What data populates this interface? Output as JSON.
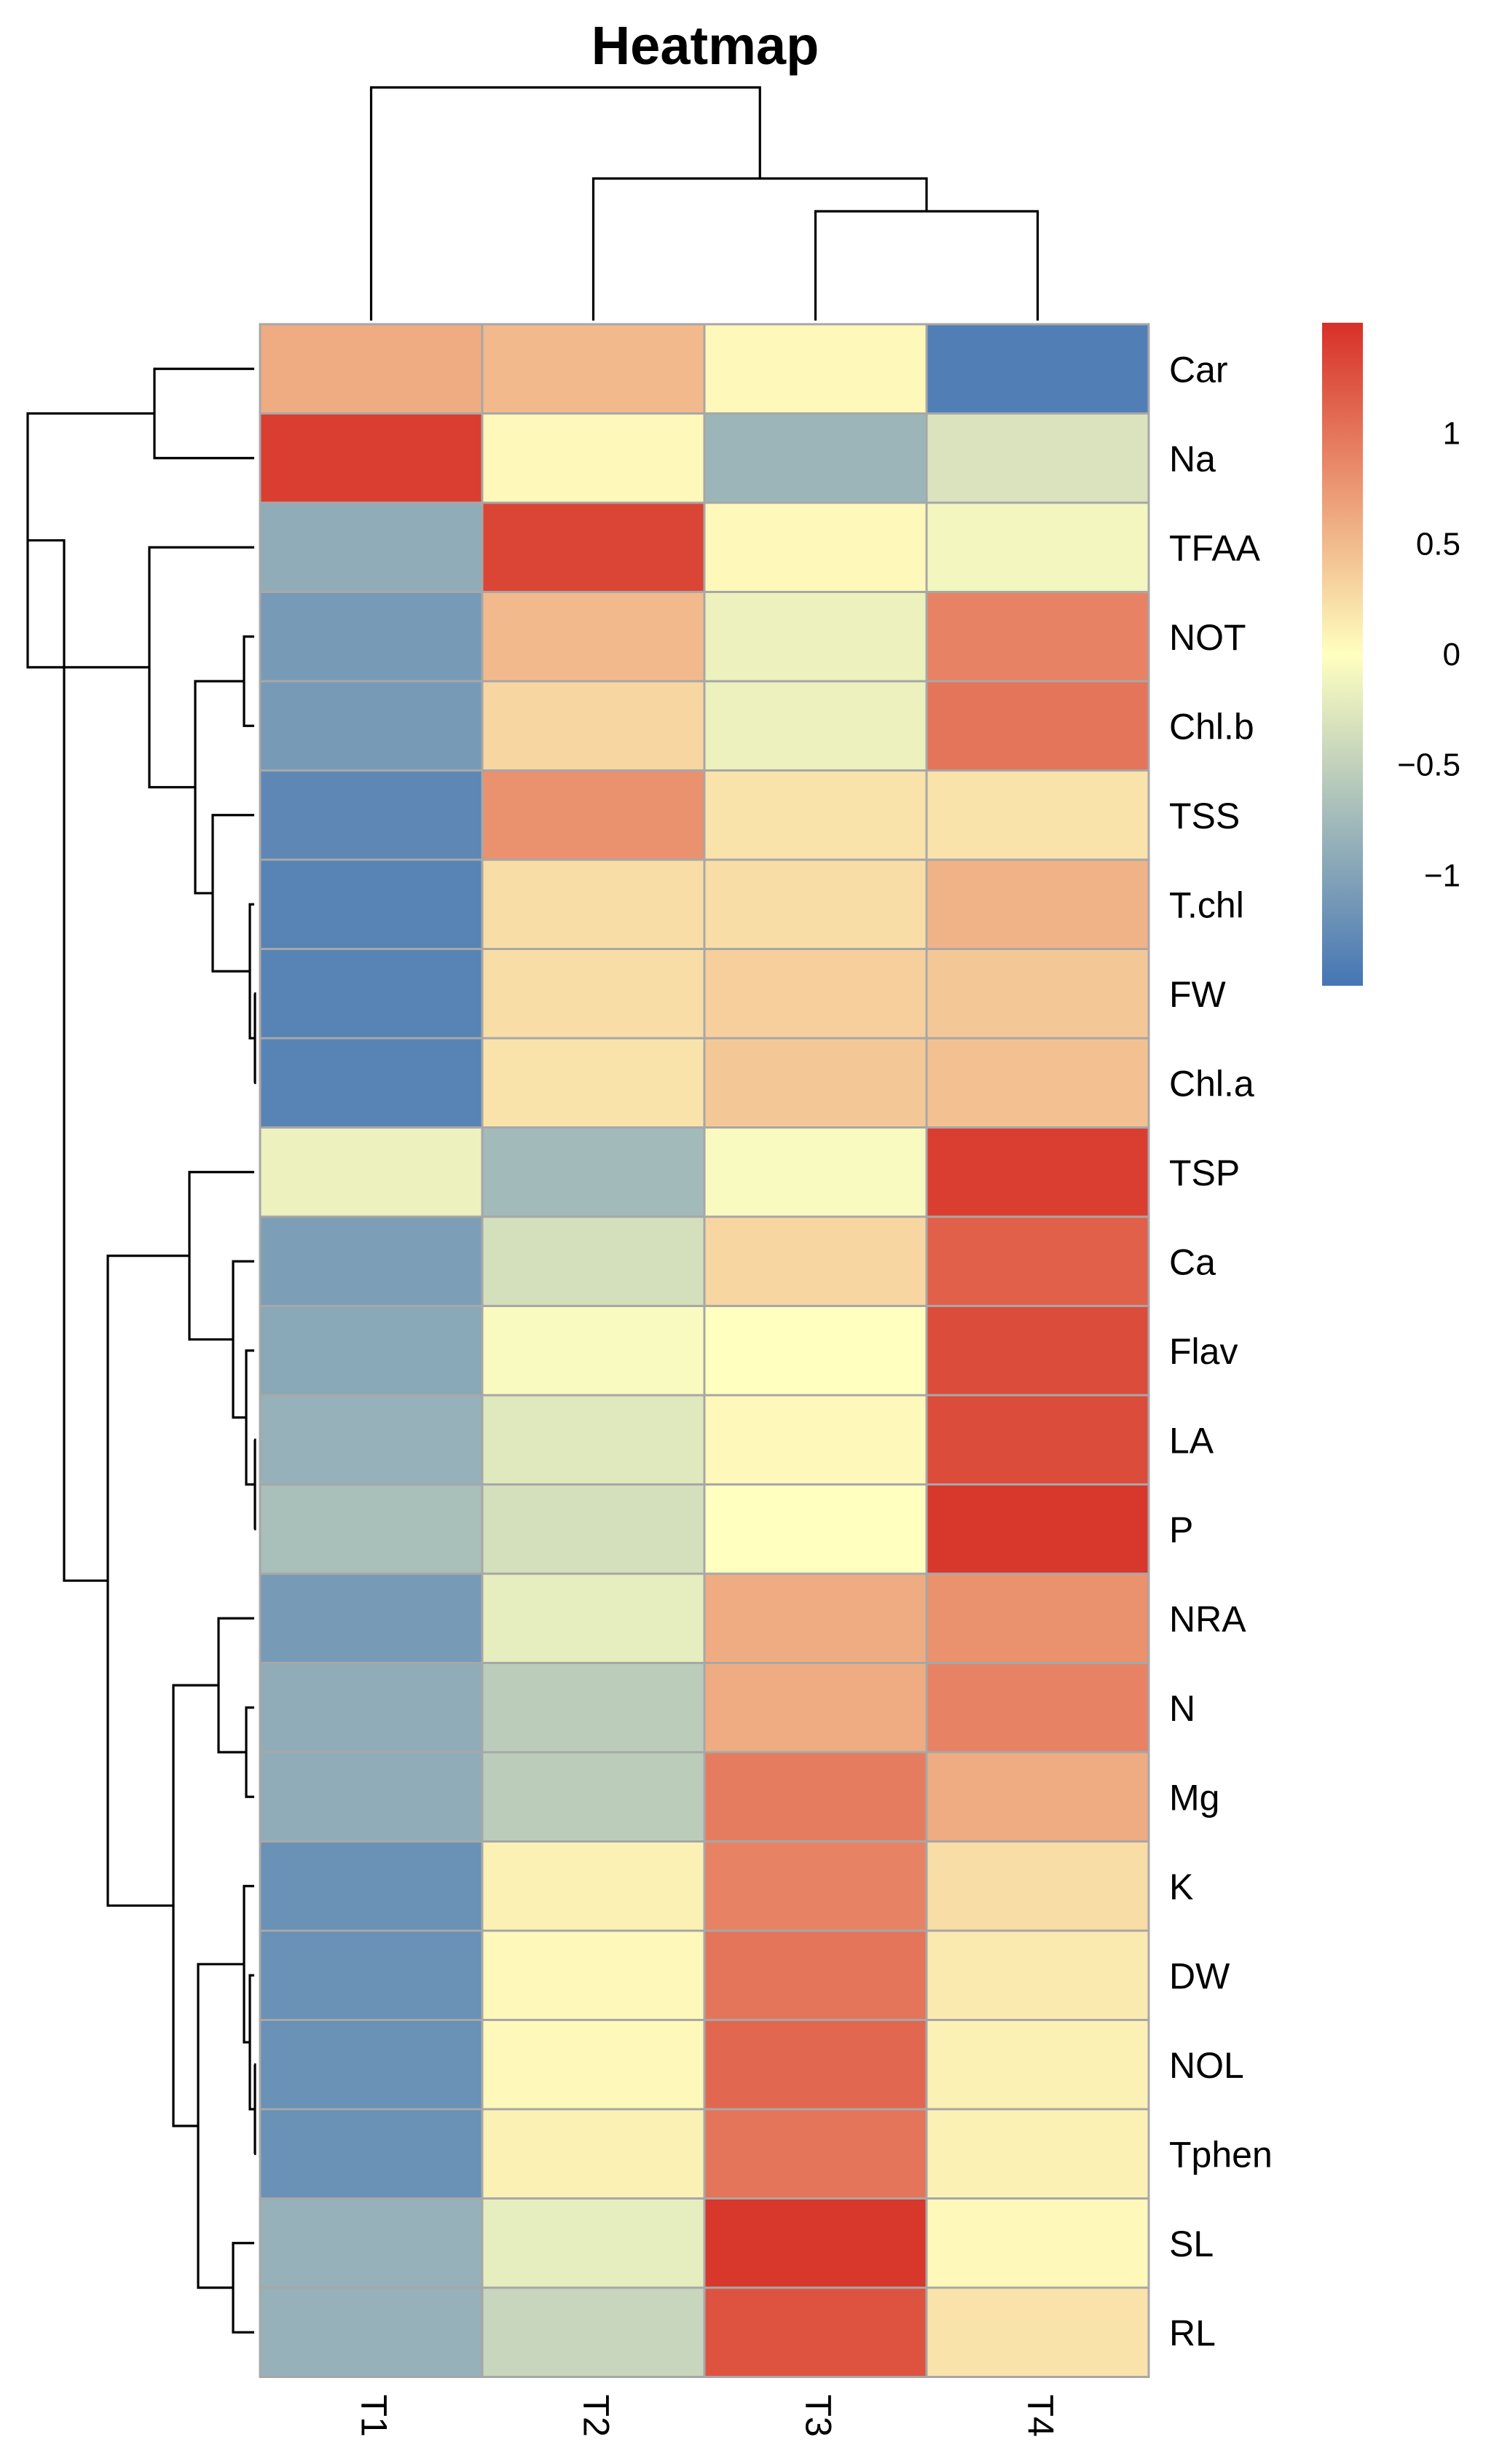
{
  "chart_data": {
    "type": "heatmap",
    "title": "Heatmap",
    "columns": [
      "T1",
      "T2",
      "T3",
      "T4"
    ],
    "rows": [
      "Car",
      "Na",
      "TFAA",
      "NOT",
      "Chl.b",
      "TSS",
      "T.chl",
      "FW",
      "Chl.a",
      "TSP",
      "Ca",
      "Flav",
      "LA",
      "P",
      "NRA",
      "N",
      "Mg",
      "K",
      "DW",
      "NOL",
      "Tphen",
      "SL",
      "RL"
    ],
    "values": [
      [
        0.6,
        0.5,
        0.05,
        -1.4
      ],
      [
        1.4,
        0.05,
        -0.8,
        -0.3
      ],
      [
        -0.9,
        1.35,
        0.05,
        -0.1
      ],
      [
        -1.1,
        0.5,
        -0.15,
        0.9
      ],
      [
        -1.1,
        0.3,
        -0.15,
        1.0
      ],
      [
        -1.3,
        0.8,
        0.2,
        0.2
      ],
      [
        -1.35,
        0.25,
        0.25,
        0.55
      ],
      [
        -1.35,
        0.25,
        0.35,
        0.4
      ],
      [
        -1.35,
        0.2,
        0.4,
        0.45
      ],
      [
        -0.15,
        -0.75,
        -0.05,
        1.4
      ],
      [
        -1.05,
        -0.35,
        0.3,
        1.15
      ],
      [
        -0.95,
        -0.05,
        0.0,
        1.3
      ],
      [
        -0.85,
        -0.25,
        0.05,
        1.3
      ],
      [
        -0.7,
        -0.35,
        0.0,
        1.45
      ],
      [
        -1.1,
        -0.2,
        0.6,
        0.8
      ],
      [
        -0.9,
        -0.55,
        0.6,
        0.9
      ],
      [
        -0.9,
        -0.55,
        0.95,
        0.6
      ],
      [
        -1.2,
        0.1,
        0.9,
        0.25
      ],
      [
        -1.2,
        0.05,
        1.0,
        0.15
      ],
      [
        -1.2,
        0.05,
        1.1,
        0.1
      ],
      [
        -1.2,
        0.1,
        1.0,
        0.1
      ],
      [
        -0.85,
        -0.2,
        1.45,
        0.05
      ],
      [
        -0.85,
        -0.45,
        1.25,
        0.2
      ]
    ],
    "color_scale": {
      "min": -1.5,
      "max": 1.5,
      "low_color": "#4575b4",
      "mid_color": "#ffffbf",
      "high_color": "#d73027",
      "ticks": [
        1,
        0.5,
        0,
        -0.5,
        -1
      ],
      "tick_labels": [
        "1",
        "0.5",
        "0",
        "−0.5",
        "−1"
      ]
    },
    "legend_position": "top-right",
    "row_dendrogram": true,
    "column_dendrogram": true,
    "grid": false
  }
}
